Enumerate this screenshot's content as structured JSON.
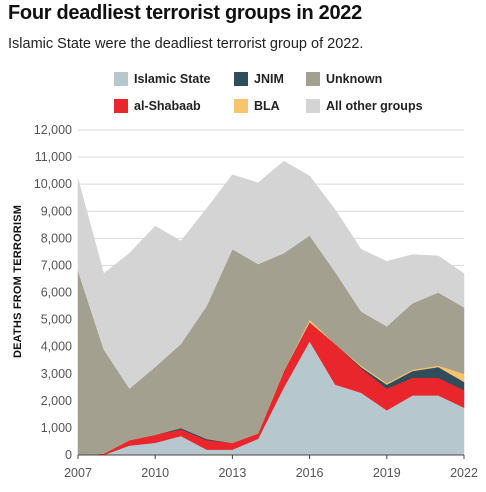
{
  "title": "Four deadliest terrorist groups in 2022",
  "subtitle": "Islamic State were the deadliest terrorist group of 2022.",
  "chart_data": {
    "type": "area",
    "stacked": true,
    "title": "Four deadliest terrorist groups in 2022",
    "subtitle": "Islamic State were the deadliest terrorist group of 2022.",
    "ylabel": "DEATHS FROM TERRORISM",
    "xlabel": "",
    "x": [
      2007,
      2008,
      2009,
      2010,
      2011,
      2012,
      2013,
      2014,
      2015,
      2016,
      2017,
      2018,
      2019,
      2020,
      2021,
      2022
    ],
    "xticks": [
      "2007",
      "2010",
      "2013",
      "2016",
      "2019",
      "2022"
    ],
    "ylim": [
      0,
      12000
    ],
    "yticks": [
      "0",
      "1,000",
      "2,000",
      "3,000",
      "4,000",
      "5,000",
      "6,000",
      "7,000",
      "8,000",
      "9,000",
      "10,000",
      "11,000",
      "12,000"
    ],
    "grid": true,
    "legend_position": "top",
    "series": [
      {
        "name": "Islamic State",
        "color": "#b7c7ce",
        "values": [
          0,
          0,
          350,
          450,
          700,
          200,
          200,
          600,
          2500,
          4200,
          2600,
          2300,
          1650,
          2200,
          2200,
          1750
        ]
      },
      {
        "name": "al-Shabaab",
        "color": "#e8262c",
        "values": [
          0,
          50,
          200,
          300,
          250,
          350,
          250,
          200,
          600,
          700,
          1500,
          900,
          800,
          650,
          650,
          650
        ]
      },
      {
        "name": "JNIM",
        "color": "#2f4d5a",
        "values": [
          0,
          0,
          0,
          0,
          50,
          50,
          0,
          0,
          0,
          0,
          0,
          50,
          150,
          250,
          400,
          300
        ]
      },
      {
        "name": "BLA",
        "color": "#f9c46c",
        "values": [
          0,
          0,
          0,
          0,
          0,
          0,
          0,
          0,
          0,
          100,
          0,
          50,
          50,
          50,
          50,
          300
        ]
      },
      {
        "name": "Unknown",
        "color": "#a4a08f",
        "values": [
          6800,
          3850,
          1900,
          2500,
          3100,
          4900,
          7150,
          6250,
          4350,
          3100,
          2650,
          2000,
          2100,
          2450,
          2700,
          2450
        ]
      },
      {
        "name": "All other groups",
        "color": "#d4d4d4",
        "values": [
          3400,
          2800,
          5000,
          5200,
          3800,
          3600,
          2750,
          3000,
          3400,
          2200,
          2300,
          2300,
          2400,
          1800,
          1350,
          1250
        ]
      }
    ],
    "legend": [
      {
        "name": "Islamic State",
        "color": "#b7c7ce"
      },
      {
        "name": "JNIM",
        "color": "#2f4d5a"
      },
      {
        "name": "Unknown",
        "color": "#a4a08f"
      },
      {
        "name": "al-Shabaab",
        "color": "#e8262c"
      },
      {
        "name": "BLA",
        "color": "#f9c46c"
      },
      {
        "name": "All other groups",
        "color": "#d4d4d4"
      }
    ]
  }
}
